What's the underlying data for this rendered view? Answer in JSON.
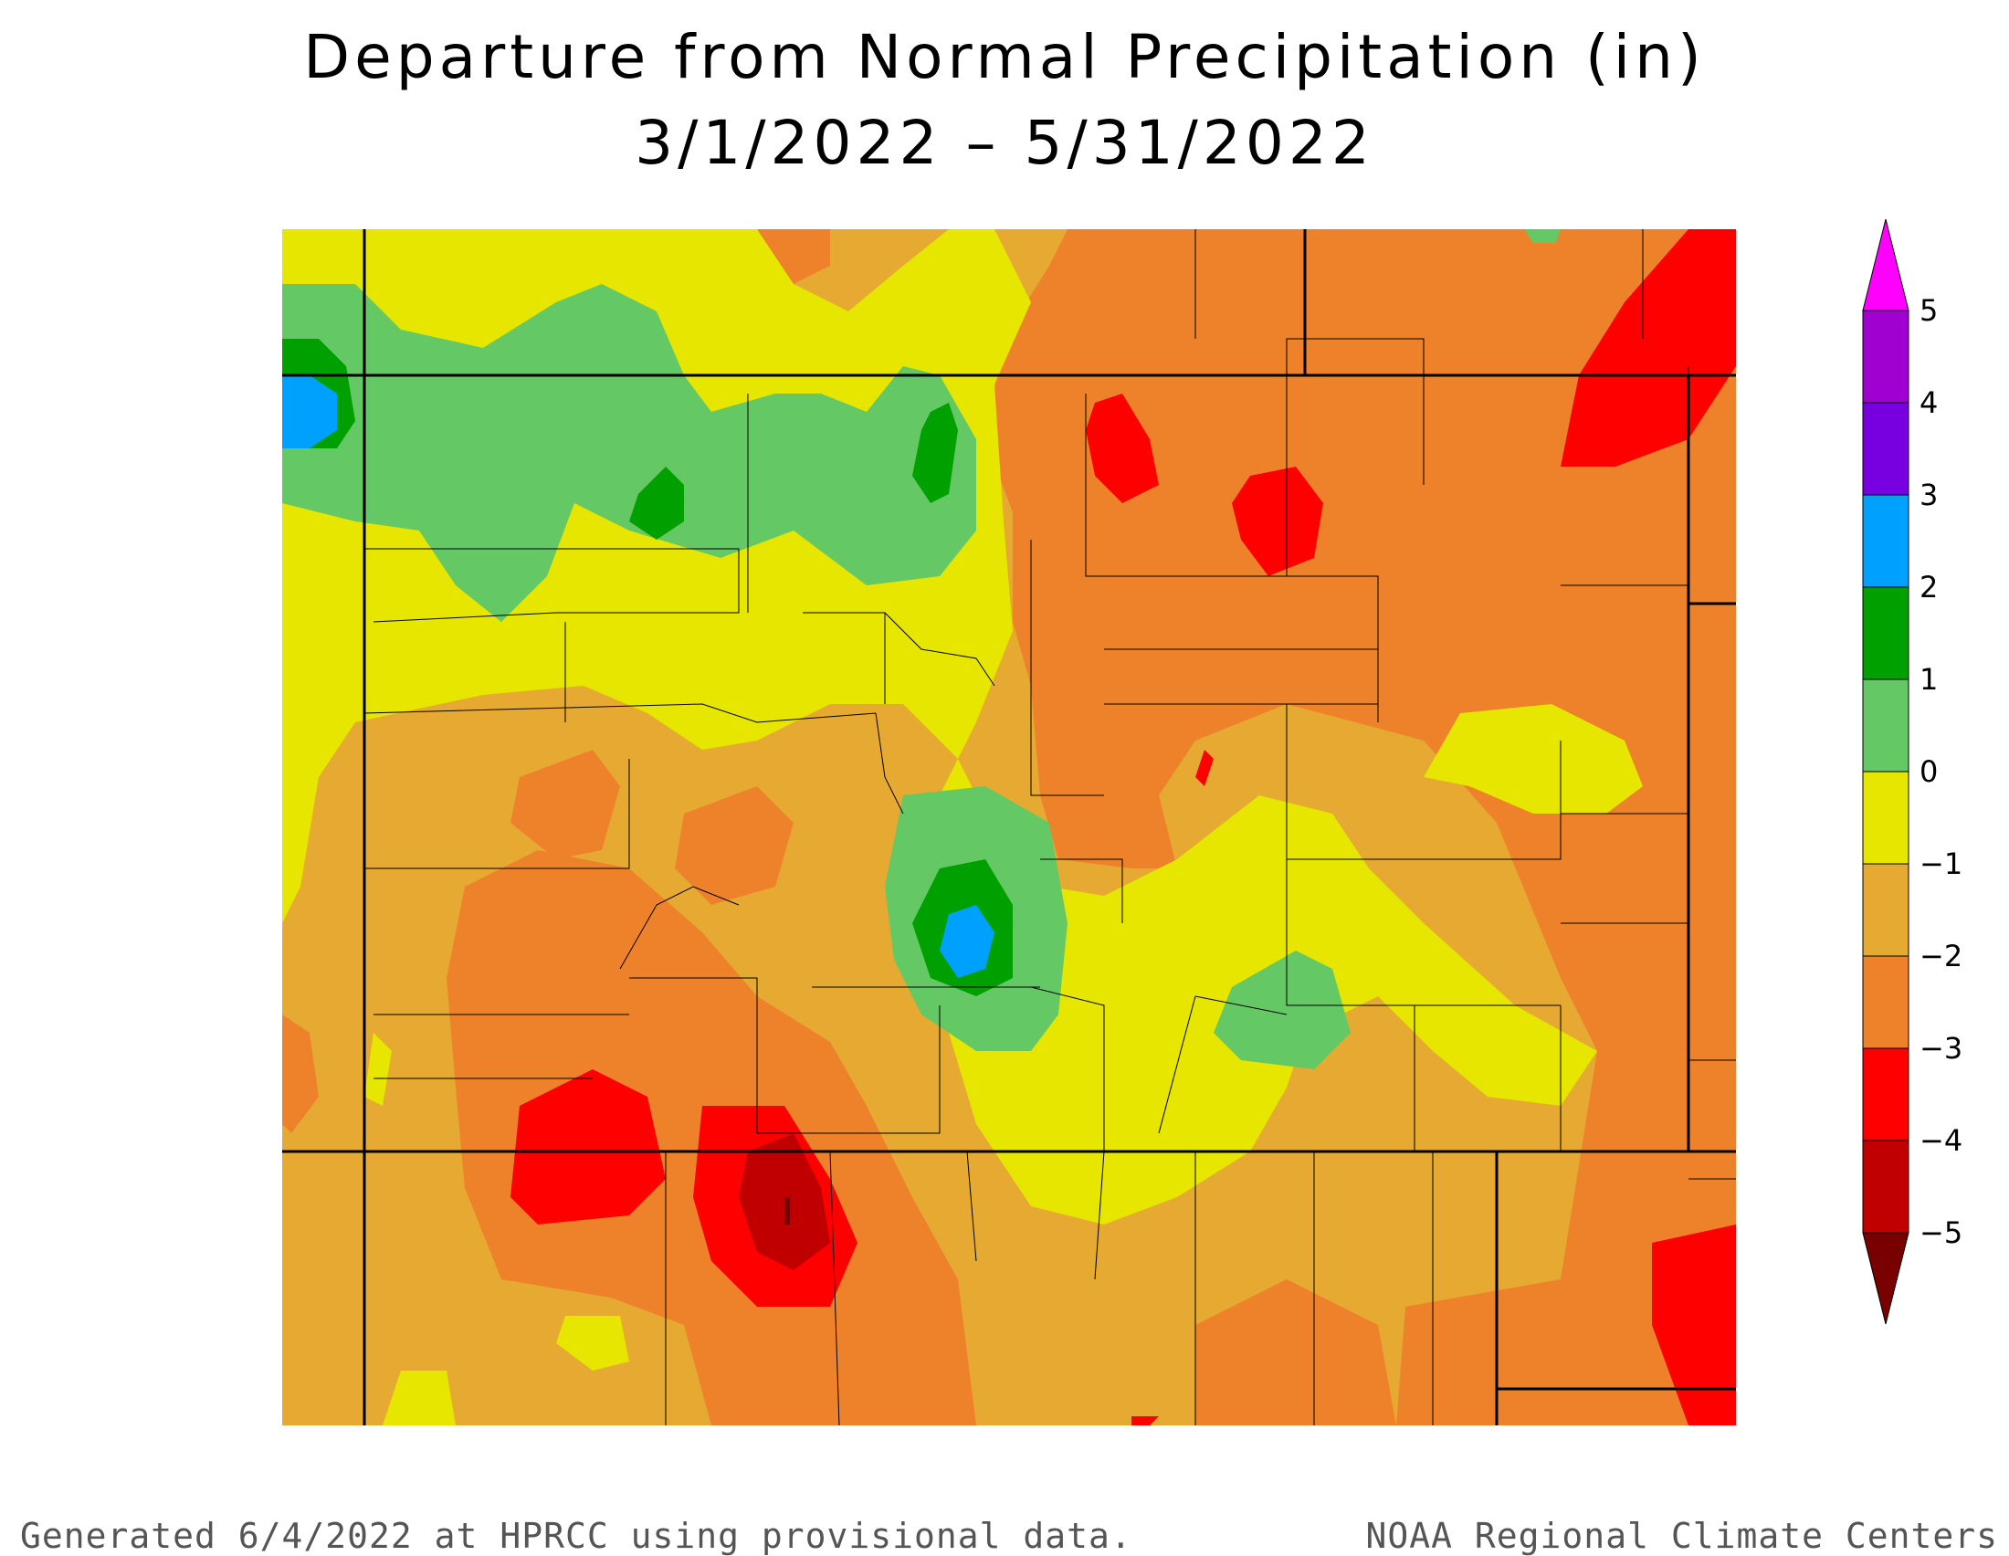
{
  "title": {
    "line1": "Departure from Normal Precipitation (in)",
    "line2": "3/1/2022 – 5/31/2022"
  },
  "legend": {
    "units": "in",
    "labels": [
      "5",
      "4",
      "3",
      "2",
      "1",
      "0",
      "−1",
      "−2",
      "−3",
      "−4",
      "−5"
    ],
    "bins": [
      {
        "min": 5,
        "max": null,
        "color": "#ff00ff"
      },
      {
        "min": 4,
        "max": 5,
        "color": "#a000d0"
      },
      {
        "min": 3,
        "max": 4,
        "color": "#7800e0"
      },
      {
        "min": 2,
        "max": 3,
        "color": "#00a0ff"
      },
      {
        "min": 1,
        "max": 2,
        "color": "#00a000"
      },
      {
        "min": 0,
        "max": 1,
        "color": "#64c864"
      },
      {
        "min": -1,
        "max": 0,
        "color": "#e6e600"
      },
      {
        "min": -2,
        "max": -1,
        "color": "#e6aa32"
      },
      {
        "min": -3,
        "max": -2,
        "color": "#ee822a"
      },
      {
        "min": -4,
        "max": -3,
        "color": "#ff0000"
      },
      {
        "min": -5,
        "max": -4,
        "color": "#c00000"
      },
      {
        "min": null,
        "max": -5,
        "color": "#780000"
      }
    ]
  },
  "map": {
    "region": "Colorado and surrounding states",
    "features": [
      "state boundaries",
      "county boundaries",
      "filled contours of precipitation departure"
    ]
  },
  "footer": {
    "left": "Generated 6/4/2022 at HPRCC using provisional data.",
    "right": "NOAA Regional Climate Centers"
  }
}
